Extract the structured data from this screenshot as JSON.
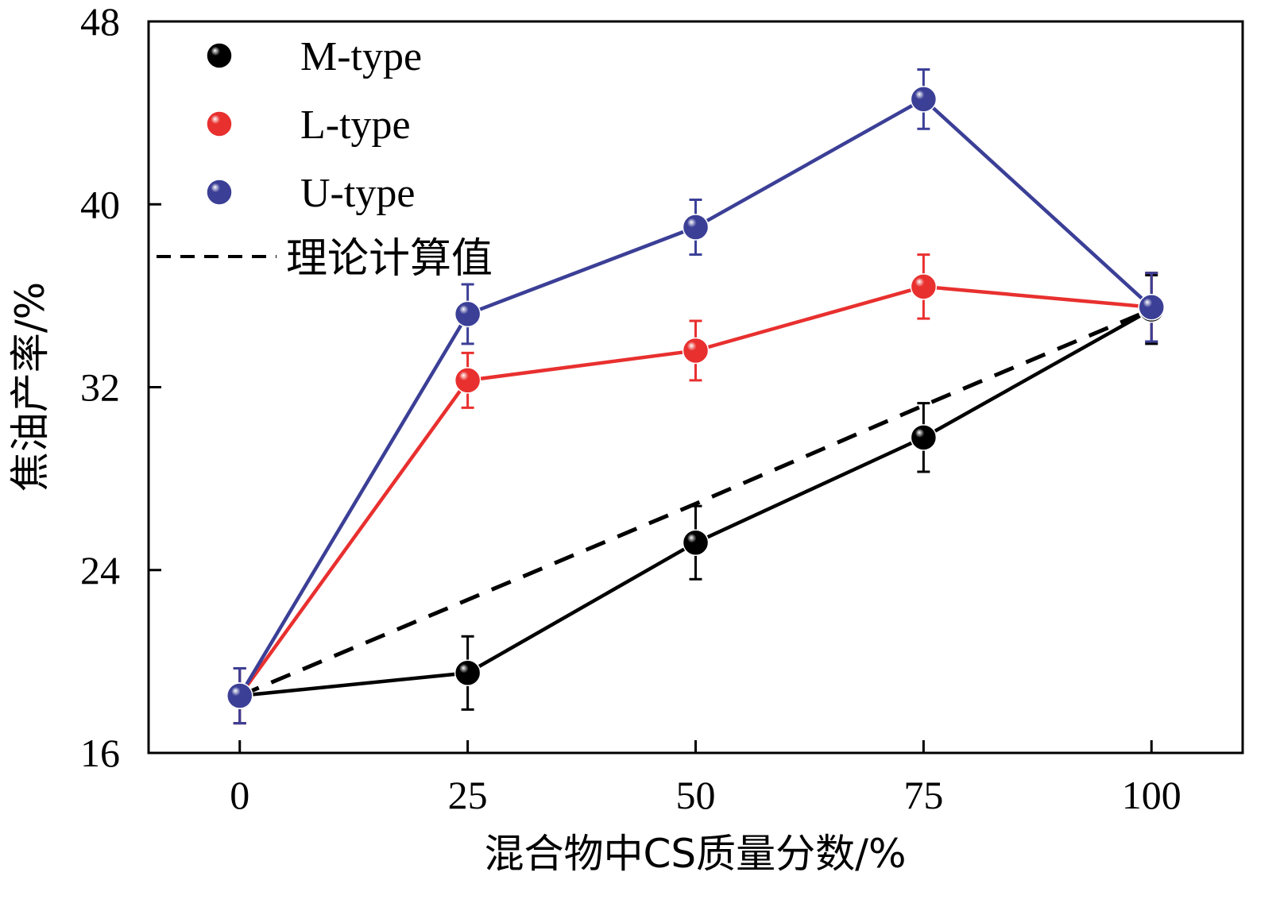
{
  "chart_data": {
    "type": "line",
    "title": "",
    "xlabel": "混合物中CS质量分数/%",
    "ylabel": "焦油产率/%",
    "x": [
      0,
      25,
      50,
      75,
      100
    ],
    "x_tick_labels": [
      "0",
      "25",
      "50",
      "75",
      "100"
    ],
    "xlim": [
      -10,
      110
    ],
    "ylim": [
      16,
      48
    ],
    "y_ticks": [
      16,
      24,
      32,
      40,
      48
    ],
    "y_tick_labels": [
      "16",
      "24",
      "32",
      "40",
      "48"
    ],
    "grid": false,
    "legend_position": "top-left",
    "series": [
      {
        "name": "M-type",
        "color": "#000000",
        "values": [
          18.5,
          19.5,
          25.2,
          29.8,
          35.4
        ],
        "errors": [
          1.2,
          1.6,
          1.6,
          1.5,
          1.5
        ],
        "marker": "sphere"
      },
      {
        "name": "L-type",
        "color": "#e8302f",
        "values": [
          18.5,
          32.3,
          33.6,
          36.4,
          35.5
        ],
        "errors": [
          1.2,
          1.2,
          1.3,
          1.4,
          1.5
        ],
        "marker": "sphere"
      },
      {
        "name": "U-type",
        "color": "#3b3f96",
        "values": [
          18.5,
          35.2,
          39.0,
          44.6,
          35.5
        ],
        "errors": [
          1.2,
          1.3,
          1.2,
          1.3,
          1.5
        ],
        "marker": "sphere"
      }
    ],
    "theoretical": {
      "name": "理论计算值",
      "color": "#000000",
      "style": "dashed",
      "values": [
        18.5,
        22.7,
        26.9,
        31.2,
        35.4
      ]
    }
  }
}
